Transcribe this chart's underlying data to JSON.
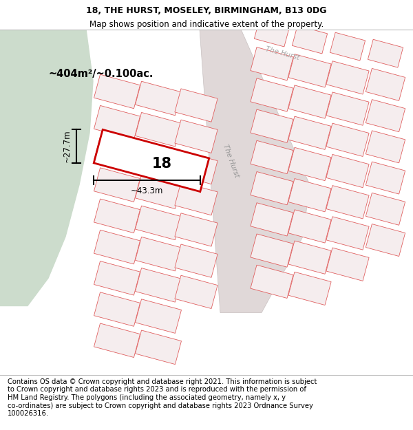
{
  "title": "18, THE HURST, MOSELEY, BIRMINGHAM, B13 0DG",
  "subtitle": "Map shows position and indicative extent of the property.",
  "footer": "Contains OS data © Crown copyright and database right 2021. This information is subject\nto Crown copyright and database rights 2023 and is reproduced with the permission of\nHM Land Registry. The polygons (including the associated geometry, namely x, y\nco-ordinates) are subject to Crown copyright and database rights 2023 Ordnance Survey\n100026316.",
  "area_label": "~404m²/~0.100ac.",
  "width_label": "~43.3m",
  "height_label": "~27.7m",
  "property_number": "18",
  "bg_map_color": "#f7f2f2",
  "bg_green_color": "#ccdccc",
  "plot_line_color": "#e06060",
  "plot_fill_color": "#f5edee",
  "prop_line_color": "#cc0000",
  "road_fill_color": "#e8e0e0",
  "title_fontsize": 9,
  "subtitle_fontsize": 8.5,
  "footer_fontsize": 7.2
}
